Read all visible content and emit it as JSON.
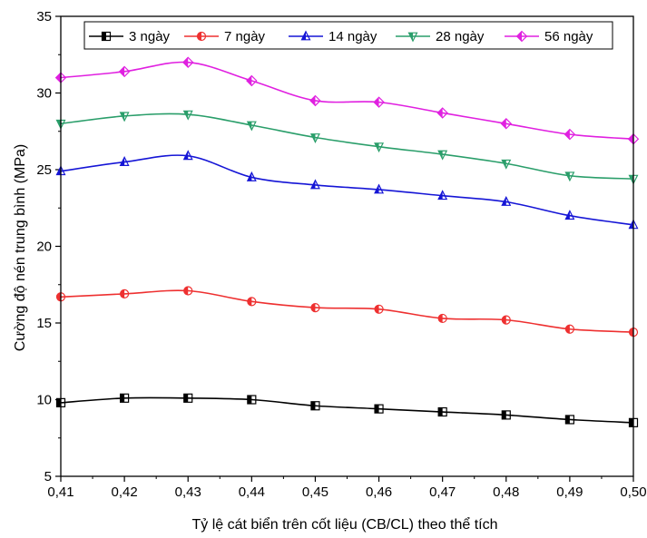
{
  "chart_data": {
    "type": "line",
    "title": "",
    "xlabel": "Tỷ lệ cát biển trên cốt liệu (CB/CL) theo thể tích",
    "ylabel": "Cường độ nén trung bình (MPa)",
    "x": [
      0.41,
      0.42,
      0.43,
      0.44,
      0.45,
      0.46,
      0.47,
      0.48,
      0.49,
      0.5
    ],
    "x_tick_labels": [
      "0,41",
      "0,42",
      "0,43",
      "0,44",
      "0,45",
      "0,46",
      "0,47",
      "0,48",
      "0,49",
      "0,50"
    ],
    "y_ticks": [
      5,
      10,
      15,
      20,
      25,
      30,
      35
    ],
    "y_tick_labels": [
      "5",
      "10",
      "15",
      "20",
      "25",
      "30",
      "35"
    ],
    "xlim": [
      0.41,
      0.5
    ],
    "ylim": [
      5,
      35
    ],
    "grid": false,
    "legend_position": "top",
    "series": [
      {
        "name": "3 ngày",
        "color": "#000000",
        "marker": "square",
        "values": [
          9.8,
          10.1,
          10.1,
          10.0,
          9.6,
          9.4,
          9.2,
          9.0,
          8.7,
          8.5
        ]
      },
      {
        "name": "7 ngày",
        "color": "#ee3030",
        "marker": "circle",
        "values": [
          16.7,
          16.9,
          17.1,
          16.4,
          16.0,
          15.9,
          15.3,
          15.2,
          14.6,
          14.4
        ]
      },
      {
        "name": "14 ngày",
        "color": "#1515d6",
        "marker": "triangle-up",
        "values": [
          24.9,
          25.5,
          25.9,
          24.5,
          24.0,
          23.7,
          23.3,
          22.9,
          22.0,
          21.4
        ]
      },
      {
        "name": "28 ngày",
        "color": "#2a9e6a",
        "marker": "triangle-down",
        "values": [
          28.0,
          28.5,
          28.6,
          27.9,
          27.1,
          26.5,
          26.0,
          25.4,
          24.6,
          24.4
        ]
      },
      {
        "name": "56 ngày",
        "color": "#e020e0",
        "marker": "diamond",
        "values": [
          31.0,
          31.4,
          32.0,
          30.8,
          29.5,
          29.4,
          28.7,
          28.0,
          27.3,
          27.0
        ]
      }
    ]
  }
}
